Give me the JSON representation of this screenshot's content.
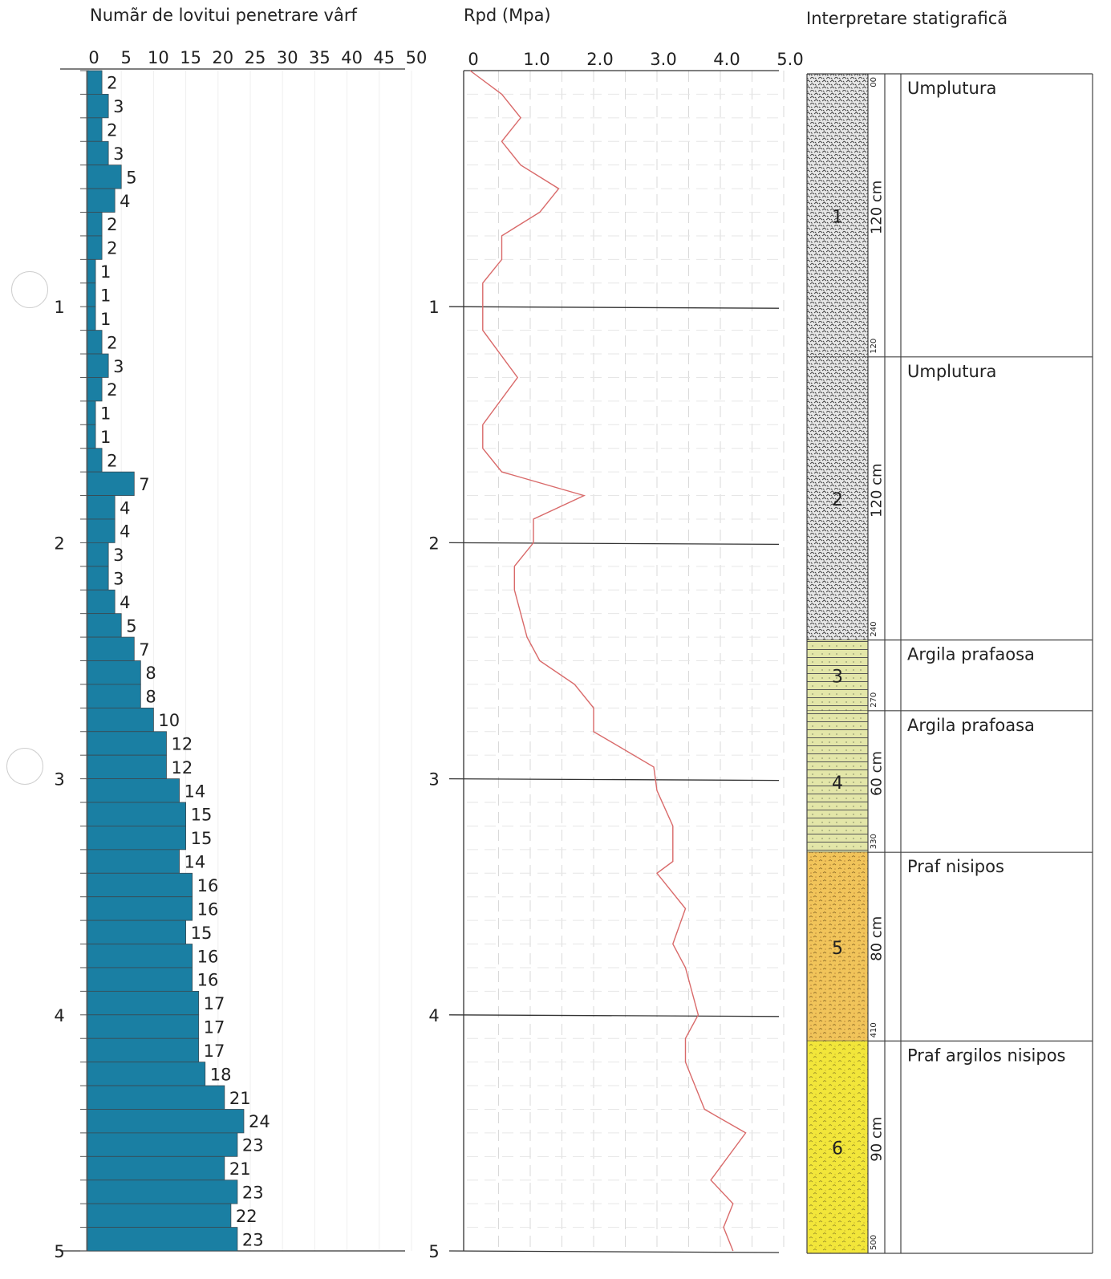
{
  "chart_data": [
    {
      "type": "bar",
      "orientation": "horizontal",
      "title": "Numãr de lovitui penetrare vârf",
      "x_ticks": [
        "0",
        "5",
        "10",
        "15",
        "20",
        "25",
        "30",
        "35",
        "40",
        "45",
        "50"
      ],
      "xlim": [
        0,
        50
      ],
      "y_ticks": [
        "1",
        "2",
        "3",
        "4",
        "5"
      ],
      "ylim": [
        0,
        5
      ],
      "depth_step": 0.1,
      "values": [
        2,
        3,
        2,
        3,
        5,
        4,
        2,
        2,
        1,
        1,
        1,
        2,
        3,
        2,
        1,
        1,
        2,
        7,
        4,
        4,
        3,
        3,
        4,
        5,
        7,
        8,
        8,
        10,
        12,
        12,
        14,
        15,
        15,
        14,
        16,
        16,
        15,
        16,
        16,
        17,
        17,
        17,
        18,
        21,
        24,
        23,
        21,
        23,
        22,
        23
      ],
      "color": "#1a7fa3"
    },
    {
      "type": "line",
      "title": "Rpd (Mpa)",
      "x_ticks": [
        "0",
        "1.0",
        "2.0",
        "3.0",
        "4.0",
        "5.0"
      ],
      "xlim": [
        0,
        5
      ],
      "y_ticks": [
        "1",
        "2",
        "3",
        "4",
        "5"
      ],
      "ylim": [
        0,
        5
      ],
      "points": [
        [
          0.05,
          0.0
        ],
        [
          0.55,
          0.1
        ],
        [
          0.85,
          0.2
        ],
        [
          0.55,
          0.3
        ],
        [
          0.85,
          0.4
        ],
        [
          1.45,
          0.5
        ],
        [
          1.15,
          0.6
        ],
        [
          0.55,
          0.7
        ],
        [
          0.55,
          0.8
        ],
        [
          0.25,
          0.9
        ],
        [
          0.25,
          1.0
        ],
        [
          0.25,
          1.1
        ],
        [
          0.8,
          1.3
        ],
        [
          0.25,
          1.5
        ],
        [
          0.25,
          1.6
        ],
        [
          0.55,
          1.7
        ],
        [
          1.85,
          1.8
        ],
        [
          1.05,
          1.9
        ],
        [
          1.05,
          2.0
        ],
        [
          0.75,
          2.1
        ],
        [
          0.75,
          2.2
        ],
        [
          0.95,
          2.4
        ],
        [
          1.15,
          2.5
        ],
        [
          1.7,
          2.6
        ],
        [
          2.0,
          2.7
        ],
        [
          2.0,
          2.8
        ],
        [
          2.95,
          2.95
        ],
        [
          3.0,
          3.05
        ],
        [
          3.25,
          3.2
        ],
        [
          3.25,
          3.35
        ],
        [
          3.0,
          3.4
        ],
        [
          3.45,
          3.55
        ],
        [
          3.25,
          3.7
        ],
        [
          3.45,
          3.8
        ],
        [
          3.65,
          4.0
        ],
        [
          3.45,
          4.1
        ],
        [
          3.45,
          4.2
        ],
        [
          3.75,
          4.4
        ],
        [
          4.4,
          4.5
        ],
        [
          3.85,
          4.7
        ],
        [
          4.2,
          4.8
        ],
        [
          4.05,
          4.9
        ],
        [
          4.2,
          5.0
        ]
      ],
      "color": "#d96a6a"
    },
    {
      "type": "table",
      "title": "Interpretare statigraficã",
      "layers": [
        {
          "id": "1",
          "name": "Umplutura",
          "top": 0,
          "bottom": 120,
          "thickness": "120 cm",
          "top_label": "00",
          "bottom_label": "120",
          "pattern": "fill"
        },
        {
          "id": "2",
          "name": "Umplutura",
          "top": 120,
          "bottom": 240,
          "thickness": "120 cm",
          "top_label": "",
          "bottom_label": "240",
          "pattern": "fill"
        },
        {
          "id": "3",
          "name": "Argila prafaosa",
          "top": 240,
          "bottom": 270,
          "thickness": "",
          "top_label": "",
          "bottom_label": "270",
          "pattern": "clay"
        },
        {
          "id": "4",
          "name": "Argila prafoasa",
          "top": 270,
          "bottom": 330,
          "thickness": "60 cm",
          "top_label": "",
          "bottom_label": "330",
          "pattern": "clay"
        },
        {
          "id": "5",
          "name": "Praf nisipos",
          "top": 330,
          "bottom": 410,
          "thickness": "80 cm",
          "top_label": "",
          "bottom_label": "410",
          "pattern": "silt"
        },
        {
          "id": "6",
          "name": "Praf argilos nisipos",
          "top": 410,
          "bottom": 500,
          "thickness": "90 cm",
          "top_label": "",
          "bottom_label": "500",
          "pattern": "sandy"
        }
      ]
    }
  ]
}
